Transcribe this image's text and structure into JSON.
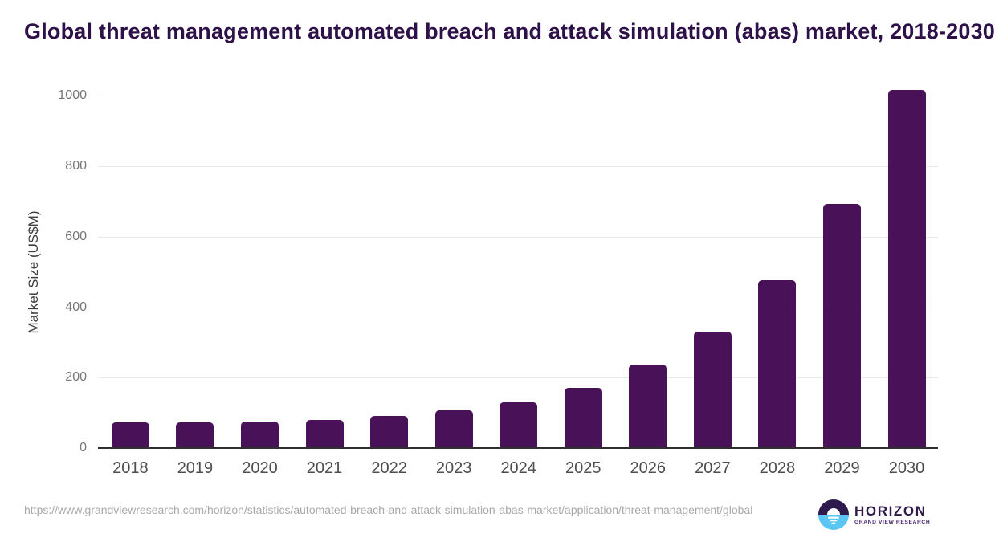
{
  "title": "Global threat management automated breach and attack simulation (abas) market, 2018-2030",
  "colors": {
    "title": "#2e1148",
    "bar": "#491158",
    "grid": "#e9e9e9",
    "axis_line": "#2f2f2f",
    "tick_label": "#767676",
    "year_label": "#4d4d4d",
    "footer_text": "#a9a9a9",
    "logo_dark": "#2e1a4c",
    "logo_blue": "#5bc6f3",
    "logo_sub": "#4e2a72"
  },
  "chart_data": {
    "type": "bar",
    "title": "Global threat management automated breach and attack simulation (abas) market, 2018-2030",
    "categories": [
      "2018",
      "2019",
      "2020",
      "2021",
      "2022",
      "2023",
      "2024",
      "2025",
      "2026",
      "2027",
      "2028",
      "2029",
      "2030"
    ],
    "values": [
      73,
      72,
      76,
      80,
      91,
      106,
      131,
      172,
      236,
      330,
      477,
      692,
      1017
    ],
    "xlabel": "",
    "ylabel": "Market Size (US$M)",
    "ylim": [
      0,
      1000
    ],
    "yticks": [
      0,
      200,
      400,
      600,
      800,
      1000
    ],
    "grid": true,
    "legend": false,
    "bar_color": "#491158"
  },
  "footer": {
    "source_url": "https://www.grandviewresearch.com/horizon/statistics/automated-breach-and-attack-simulation-abas-market/application/threat-management/global",
    "logo": {
      "brand": "HORIZON",
      "sub_brand": "GRAND VIEW RESEARCH"
    }
  }
}
